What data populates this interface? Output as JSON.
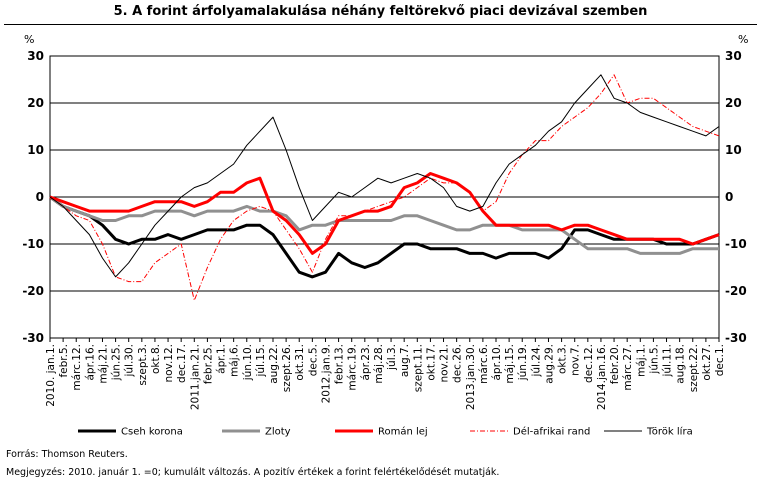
{
  "title": "5. A forint árfolyamalakulása néhány feltörekvő piaci devizával szemben",
  "source": "Forrás: Thomson Reuters.",
  "note": "Megjegyzés: 2010. január 1. =0; kumulált változás. A pozitív értékek a forint felértékelődését mutatják.",
  "colors": {
    "czk": "#000000",
    "pln": "#909090",
    "ron": "#ff0000",
    "zar": "#ff0000",
    "try": "#000000"
  },
  "chart_data": {
    "type": "line",
    "y_unit_left": "%",
    "y_unit_right": "%",
    "ylim": [
      -30,
      30
    ],
    "yticks": [
      30,
      20,
      10,
      0,
      -10,
      -20,
      -30
    ],
    "grid": true,
    "legend_position": "bottom",
    "x_tick_labels": [
      "2010. jan.1.",
      "febr.5.",
      "márc.12.",
      "ápr.16.",
      "máj.21.",
      "jún.25.",
      "júl.30.",
      "szept.3.",
      "okt.8.",
      "nov.12.",
      "dec.17.",
      "2011.jan.21.",
      "febr.25.",
      "ápr.1.",
      "máj.6.",
      "jún.10.",
      "júl.15.",
      "aug.22.",
      "szept.26.",
      "okt.31.",
      "dec.5.",
      "2012.jan.9.",
      "febr.13.",
      "márc.19.",
      "ápr.23.",
      "máj.28.",
      "júl.3.",
      "aug.7.",
      "szept.11.",
      "okt.17.",
      "nov.21.",
      "dec.26.",
      "2013.jan.30.",
      "márc.6.",
      "ápr.10.",
      "máj.15.",
      "jún.19.",
      "júl.24.",
      "aug.29.",
      "okt.3.",
      "nov.7.",
      "dec.12.",
      "2014.jan.16.",
      "febr.20.",
      "márc.27.",
      "máj.1.",
      "jún.5.",
      "júl.11.",
      "aug.18.",
      "szept.22.",
      "okt.27.",
      "dec.1."
    ],
    "series": [
      {
        "name": "Cseh korona",
        "style": "thick",
        "values": [
          0,
          -2,
          -3,
          -4,
          -6,
          -9,
          -10,
          -9,
          -9,
          -8,
          -9,
          -8,
          -7,
          -7,
          -7,
          -6,
          -6,
          -8,
          -12,
          -16,
          -17,
          -16,
          -12,
          -14,
          -15,
          -14,
          -12,
          -10,
          -10,
          -11,
          -11,
          -11,
          -12,
          -12,
          -13,
          -12,
          -12,
          -12,
          -13,
          -11,
          -7,
          -7,
          -8,
          -9,
          -9,
          -9,
          -9,
          -10,
          -10,
          -10,
          -9,
          -8
        ]
      },
      {
        "name": "Zloty",
        "style": "thick",
        "values": [
          0,
          -2,
          -3,
          -4,
          -5,
          -5,
          -4,
          -4,
          -3,
          -3,
          -3,
          -4,
          -3,
          -3,
          -3,
          -2,
          -3,
          -3,
          -4,
          -7,
          -6,
          -6,
          -5,
          -5,
          -5,
          -5,
          -5,
          -4,
          -4,
          -5,
          -6,
          -7,
          -7,
          -6,
          -6,
          -6,
          -7,
          -7,
          -7,
          -7,
          -9,
          -11,
          -11,
          -11,
          -11,
          -12,
          -12,
          -12,
          -12,
          -11,
          -11,
          -11
        ]
      },
      {
        "name": "Román lej",
        "style": "thick",
        "values": [
          0,
          -1,
          -2,
          -3,
          -3,
          -3,
          -3,
          -2,
          -1,
          -1,
          -1,
          -2,
          -1,
          1,
          1,
          3,
          4,
          -3,
          -5,
          -8,
          -12,
          -10,
          -5,
          -4,
          -3,
          -3,
          -2,
          2,
          3,
          5,
          4,
          3,
          1,
          -3,
          -6,
          -6,
          -6,
          -6,
          -6,
          -7,
          -6,
          -6,
          -7,
          -8,
          -9,
          -9,
          -9,
          -9,
          -9,
          -10,
          -9,
          -8
        ]
      },
      {
        "name": "Dél-afrikai rand",
        "style": "dash-dot",
        "values": [
          0,
          -2,
          -4,
          -5,
          -10,
          -17,
          -18,
          -18,
          -14,
          -12,
          -10,
          -22,
          -15,
          -9,
          -5,
          -3,
          -2,
          -3,
          -7,
          -11,
          -16,
          -9,
          -4,
          -4,
          -3,
          -2,
          -1,
          0,
          2,
          4,
          3,
          3,
          1,
          -3,
          -1,
          5,
          9,
          12,
          12,
          15,
          17,
          19,
          22,
          26,
          20,
          21,
          21,
          19,
          17,
          15,
          14,
          13
        ]
      },
      {
        "name": "Török líra",
        "style": "thin",
        "values": [
          0,
          -2,
          -5,
          -8,
          -13,
          -17,
          -14,
          -10,
          -6,
          -3,
          0,
          2,
          3,
          5,
          7,
          11,
          14,
          17,
          10,
          2,
          -5,
          -2,
          1,
          0,
          2,
          4,
          3,
          4,
          5,
          4,
          2,
          -2,
          -3,
          -2,
          3,
          7,
          9,
          11,
          14,
          16,
          20,
          23,
          26,
          21,
          20,
          18,
          17,
          16,
          15,
          14,
          13,
          15
        ]
      }
    ]
  }
}
